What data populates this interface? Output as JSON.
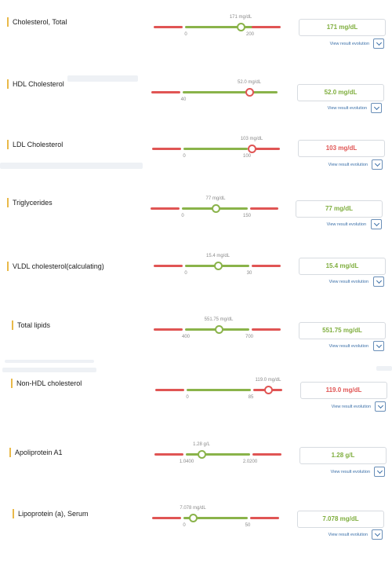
{
  "evolution_label": "View result evolution",
  "colors": {
    "normal": "#8ab34a",
    "out_of_range": "#e05554",
    "accent": "#e9b949"
  },
  "results": [
    {
      "name": "Cholesterol, Total",
      "value": "171 mg/dL",
      "ticks": [
        "0",
        "200"
      ],
      "marker": "171 mg/dL",
      "status": "normal"
    },
    {
      "name": "HDL Cholesterol",
      "value": "52.0 mg/dL",
      "ticks": [
        "40"
      ],
      "marker": "52.0 mg/dL",
      "status": "out_of_range"
    },
    {
      "name": "LDL Cholesterol",
      "value": "103 mg/dL",
      "ticks": [
        "0",
        "100"
      ],
      "marker": "103 mg/dL",
      "status": "out_of_range"
    },
    {
      "name": "Triglycerides",
      "value": "77 mg/dL",
      "ticks": [
        "0",
        "150"
      ],
      "marker": "77 mg/dL",
      "status": "normal"
    },
    {
      "name": "VLDL cholesterol(calculating)",
      "value": "15.4 mg/dL",
      "ticks": [
        "0",
        "30"
      ],
      "marker": "15.4 mg/dL",
      "status": "normal"
    },
    {
      "name": "Total lipids",
      "value": "551.75 mg/dL",
      "ticks": [
        "400",
        "700"
      ],
      "marker": "551.75 mg/dL",
      "status": "normal"
    },
    {
      "name": "Non-HDL cholesterol",
      "value": "119.0 mg/dL",
      "ticks": [
        "0",
        "85"
      ],
      "marker": "119.0 mg/dL",
      "status": "out_of_range"
    },
    {
      "name": "Apoliprotein A1",
      "value": "1.28 g/L",
      "ticks": [
        "1.0400",
        "2.0200"
      ],
      "marker": "1.28 g/L",
      "status": "normal"
    },
    {
      "name": "Lipoprotein (a), Serum",
      "value": "7.078 mg/dL",
      "ticks": [
        "0",
        "50"
      ],
      "marker": "7.078 mg/dL",
      "status": "normal"
    }
  ]
}
